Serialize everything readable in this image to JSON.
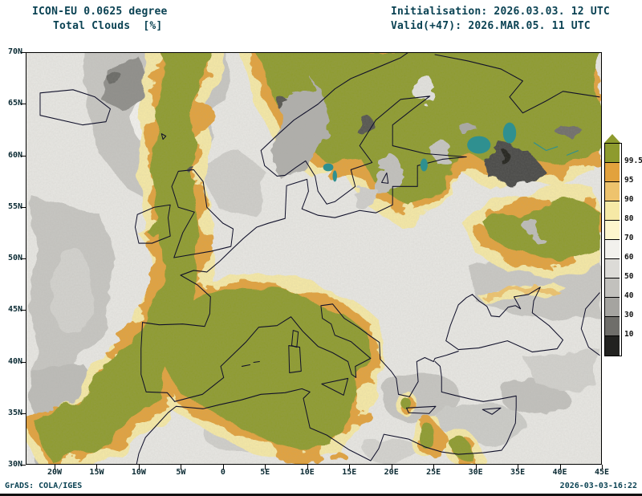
{
  "header": {
    "model_title": "ICON-EU 0.0625 degree",
    "variable_title": "Total Clouds  [%]",
    "init_label": "Initialisation: 2026.03.03. 12 UTC",
    "valid_label": "Valid(+47): 2026.MAR.05. 11 UTC"
  },
  "map": {
    "lat_ticks": [
      "70N",
      "65N",
      "60N",
      "55N",
      "50N",
      "45N",
      "40N",
      "35N",
      "30N"
    ],
    "lon_ticks": [
      "20W",
      "15W",
      "10W",
      "5W",
      "0",
      "5E",
      "10E",
      "15E",
      "20E",
      "25E",
      "30E",
      "35E",
      "40E",
      "45E"
    ]
  },
  "legend": {
    "labels": [
      "99.5",
      "95",
      "90",
      "80",
      "70",
      "60",
      "50",
      "40",
      "30",
      "10"
    ],
    "colors": [
      "#8e9b2e",
      "#e2a23d",
      "#eec36d",
      "#f6e9a6",
      "#fdf6cd",
      "#f2f1ed",
      "#dcdbd7",
      "#c2c1bd",
      "#a5a4a0",
      "#6f6e6a",
      "#222220"
    ]
  },
  "footer": {
    "credit": "GrADS: COLA/IGES",
    "timestamp": "2026-03-03-16:22"
  },
  "chart_data": {
    "type": "heatmap",
    "title": "Total Clouds [%]",
    "model": "ICON-EU 0.0625 degree",
    "init_time": "2026.03.03. 12 UTC",
    "valid_time": "Valid(+47): 2026.MAR.05. 11 UTC",
    "x_axis_ticks": [
      "20W",
      "15W",
      "10W",
      "5W",
      "0",
      "5E",
      "10E",
      "15E",
      "20E",
      "25E",
      "30E",
      "35E",
      "40E",
      "45E"
    ],
    "y_axis_ticks": [
      "70N",
      "65N",
      "60N",
      "55N",
      "50N",
      "45N",
      "40N",
      "35N",
      "30N"
    ],
    "legend_thresholds_percent": [
      99.5,
      95,
      90,
      80,
      70,
      60,
      50,
      40,
      30,
      10
    ],
    "units": "%"
  }
}
